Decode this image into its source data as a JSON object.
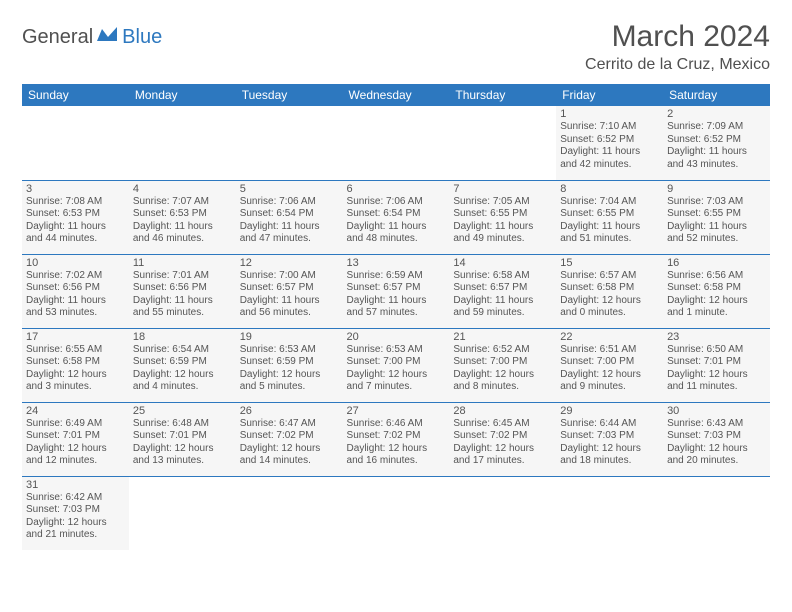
{
  "logo": {
    "part1": "General",
    "part2": "Blue"
  },
  "title": "March 2024",
  "location": "Cerrito de la Cruz, Mexico",
  "colors": {
    "brand": "#2d78bf",
    "text": "#505050",
    "cellbg": "#f6f6f6"
  },
  "dayHeaders": [
    "Sunday",
    "Monday",
    "Tuesday",
    "Wednesday",
    "Thursday",
    "Friday",
    "Saturday"
  ],
  "weeks": [
    [
      null,
      null,
      null,
      null,
      null,
      {
        "n": "1",
        "sr": "Sunrise: 7:10 AM",
        "ss": "Sunset: 6:52 PM",
        "d1": "Daylight: 11 hours",
        "d2": "and 42 minutes."
      },
      {
        "n": "2",
        "sr": "Sunrise: 7:09 AM",
        "ss": "Sunset: 6:52 PM",
        "d1": "Daylight: 11 hours",
        "d2": "and 43 minutes."
      }
    ],
    [
      {
        "n": "3",
        "sr": "Sunrise: 7:08 AM",
        "ss": "Sunset: 6:53 PM",
        "d1": "Daylight: 11 hours",
        "d2": "and 44 minutes."
      },
      {
        "n": "4",
        "sr": "Sunrise: 7:07 AM",
        "ss": "Sunset: 6:53 PM",
        "d1": "Daylight: 11 hours",
        "d2": "and 46 minutes."
      },
      {
        "n": "5",
        "sr": "Sunrise: 7:06 AM",
        "ss": "Sunset: 6:54 PM",
        "d1": "Daylight: 11 hours",
        "d2": "and 47 minutes."
      },
      {
        "n": "6",
        "sr": "Sunrise: 7:06 AM",
        "ss": "Sunset: 6:54 PM",
        "d1": "Daylight: 11 hours",
        "d2": "and 48 minutes."
      },
      {
        "n": "7",
        "sr": "Sunrise: 7:05 AM",
        "ss": "Sunset: 6:55 PM",
        "d1": "Daylight: 11 hours",
        "d2": "and 49 minutes."
      },
      {
        "n": "8",
        "sr": "Sunrise: 7:04 AM",
        "ss": "Sunset: 6:55 PM",
        "d1": "Daylight: 11 hours",
        "d2": "and 51 minutes."
      },
      {
        "n": "9",
        "sr": "Sunrise: 7:03 AM",
        "ss": "Sunset: 6:55 PM",
        "d1": "Daylight: 11 hours",
        "d2": "and 52 minutes."
      }
    ],
    [
      {
        "n": "10",
        "sr": "Sunrise: 7:02 AM",
        "ss": "Sunset: 6:56 PM",
        "d1": "Daylight: 11 hours",
        "d2": "and 53 minutes."
      },
      {
        "n": "11",
        "sr": "Sunrise: 7:01 AM",
        "ss": "Sunset: 6:56 PM",
        "d1": "Daylight: 11 hours",
        "d2": "and 55 minutes."
      },
      {
        "n": "12",
        "sr": "Sunrise: 7:00 AM",
        "ss": "Sunset: 6:57 PM",
        "d1": "Daylight: 11 hours",
        "d2": "and 56 minutes."
      },
      {
        "n": "13",
        "sr": "Sunrise: 6:59 AM",
        "ss": "Sunset: 6:57 PM",
        "d1": "Daylight: 11 hours",
        "d2": "and 57 minutes."
      },
      {
        "n": "14",
        "sr": "Sunrise: 6:58 AM",
        "ss": "Sunset: 6:57 PM",
        "d1": "Daylight: 11 hours",
        "d2": "and 59 minutes."
      },
      {
        "n": "15",
        "sr": "Sunrise: 6:57 AM",
        "ss": "Sunset: 6:58 PM",
        "d1": "Daylight: 12 hours",
        "d2": "and 0 minutes."
      },
      {
        "n": "16",
        "sr": "Sunrise: 6:56 AM",
        "ss": "Sunset: 6:58 PM",
        "d1": "Daylight: 12 hours",
        "d2": "and 1 minute."
      }
    ],
    [
      {
        "n": "17",
        "sr": "Sunrise: 6:55 AM",
        "ss": "Sunset: 6:58 PM",
        "d1": "Daylight: 12 hours",
        "d2": "and 3 minutes."
      },
      {
        "n": "18",
        "sr": "Sunrise: 6:54 AM",
        "ss": "Sunset: 6:59 PM",
        "d1": "Daylight: 12 hours",
        "d2": "and 4 minutes."
      },
      {
        "n": "19",
        "sr": "Sunrise: 6:53 AM",
        "ss": "Sunset: 6:59 PM",
        "d1": "Daylight: 12 hours",
        "d2": "and 5 minutes."
      },
      {
        "n": "20",
        "sr": "Sunrise: 6:53 AM",
        "ss": "Sunset: 7:00 PM",
        "d1": "Daylight: 12 hours",
        "d2": "and 7 minutes."
      },
      {
        "n": "21",
        "sr": "Sunrise: 6:52 AM",
        "ss": "Sunset: 7:00 PM",
        "d1": "Daylight: 12 hours",
        "d2": "and 8 minutes."
      },
      {
        "n": "22",
        "sr": "Sunrise: 6:51 AM",
        "ss": "Sunset: 7:00 PM",
        "d1": "Daylight: 12 hours",
        "d2": "and 9 minutes."
      },
      {
        "n": "23",
        "sr": "Sunrise: 6:50 AM",
        "ss": "Sunset: 7:01 PM",
        "d1": "Daylight: 12 hours",
        "d2": "and 11 minutes."
      }
    ],
    [
      {
        "n": "24",
        "sr": "Sunrise: 6:49 AM",
        "ss": "Sunset: 7:01 PM",
        "d1": "Daylight: 12 hours",
        "d2": "and 12 minutes."
      },
      {
        "n": "25",
        "sr": "Sunrise: 6:48 AM",
        "ss": "Sunset: 7:01 PM",
        "d1": "Daylight: 12 hours",
        "d2": "and 13 minutes."
      },
      {
        "n": "26",
        "sr": "Sunrise: 6:47 AM",
        "ss": "Sunset: 7:02 PM",
        "d1": "Daylight: 12 hours",
        "d2": "and 14 minutes."
      },
      {
        "n": "27",
        "sr": "Sunrise: 6:46 AM",
        "ss": "Sunset: 7:02 PM",
        "d1": "Daylight: 12 hours",
        "d2": "and 16 minutes."
      },
      {
        "n": "28",
        "sr": "Sunrise: 6:45 AM",
        "ss": "Sunset: 7:02 PM",
        "d1": "Daylight: 12 hours",
        "d2": "and 17 minutes."
      },
      {
        "n": "29",
        "sr": "Sunrise: 6:44 AM",
        "ss": "Sunset: 7:03 PM",
        "d1": "Daylight: 12 hours",
        "d2": "and 18 minutes."
      },
      {
        "n": "30",
        "sr": "Sunrise: 6:43 AM",
        "ss": "Sunset: 7:03 PM",
        "d1": "Daylight: 12 hours",
        "d2": "and 20 minutes."
      }
    ],
    [
      {
        "n": "31",
        "sr": "Sunrise: 6:42 AM",
        "ss": "Sunset: 7:03 PM",
        "d1": "Daylight: 12 hours",
        "d2": "and 21 minutes."
      },
      null,
      null,
      null,
      null,
      null,
      null
    ]
  ]
}
